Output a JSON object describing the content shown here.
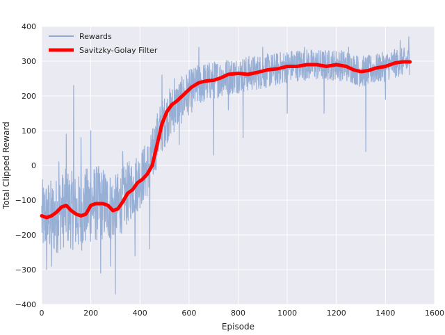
{
  "chart_data": {
    "type": "line",
    "title": "",
    "xlabel": "Episode",
    "ylabel": "Total Clipped Reward",
    "xlim": [
      0,
      1600
    ],
    "ylim": [
      -400,
      400
    ],
    "xticks": [
      0,
      200,
      400,
      600,
      800,
      1000,
      1200,
      1400,
      1600
    ],
    "yticks": [
      -400,
      -300,
      -200,
      -100,
      0,
      100,
      200,
      300,
      400
    ],
    "grid": true,
    "legend_position": "top-left",
    "background": "#eaeaf2",
    "series": [
      {
        "name": "Rewards",
        "color": "#8fa8d2",
        "mean": [
          [
            0,
            -150
          ],
          [
            50,
            -150
          ],
          [
            100,
            -120
          ],
          [
            150,
            -140
          ],
          [
            200,
            -110
          ],
          [
            250,
            -110
          ],
          [
            300,
            -125
          ],
          [
            350,
            -80
          ],
          [
            400,
            -40
          ],
          [
            440,
            0
          ],
          [
            480,
            100
          ],
          [
            520,
            150
          ],
          [
            560,
            180
          ],
          [
            600,
            210
          ],
          [
            650,
            235
          ],
          [
            700,
            245
          ],
          [
            750,
            255
          ],
          [
            800,
            260
          ],
          [
            850,
            265
          ],
          [
            900,
            270
          ],
          [
            950,
            275
          ],
          [
            1000,
            285
          ],
          [
            1050,
            290
          ],
          [
            1100,
            290
          ],
          [
            1150,
            288
          ],
          [
            1200,
            290
          ],
          [
            1250,
            285
          ],
          [
            1300,
            270
          ],
          [
            1350,
            275
          ],
          [
            1400,
            285
          ],
          [
            1450,
            295
          ],
          [
            1500,
            300
          ]
        ],
        "spread": [
          [
            0,
            110
          ],
          [
            200,
            115
          ],
          [
            350,
            90
          ],
          [
            450,
            80
          ],
          [
            550,
            70
          ],
          [
            700,
            55
          ],
          [
            900,
            50
          ],
          [
            1100,
            45
          ],
          [
            1300,
            45
          ],
          [
            1500,
            40
          ]
        ],
        "spikes": [
          [
            20,
            -300
          ],
          [
            40,
            -290
          ],
          [
            70,
            10
          ],
          [
            100,
            90
          ],
          [
            130,
            230
          ],
          [
            160,
            80
          ],
          [
            200,
            100
          ],
          [
            240,
            -310
          ],
          [
            280,
            -290
          ],
          [
            300,
            -370
          ],
          [
            330,
            40
          ],
          [
            380,
            -260
          ],
          [
            440,
            -240
          ],
          [
            490,
            260
          ],
          [
            540,
            250
          ],
          [
            560,
            60
          ],
          [
            640,
            340
          ],
          [
            700,
            30
          ],
          [
            760,
            160
          ],
          [
            820,
            80
          ],
          [
            900,
            340
          ],
          [
            1000,
            150
          ],
          [
            1070,
            340
          ],
          [
            1150,
            150
          ],
          [
            1250,
            340
          ],
          [
            1320,
            40
          ],
          [
            1400,
            190
          ],
          [
            1460,
            360
          ],
          [
            1495,
            370
          ]
        ],
        "points": 1500
      },
      {
        "name": "Savitzky-Golay Filter",
        "color": "#ff0000",
        "x": [
          0,
          20,
          40,
          60,
          80,
          100,
          120,
          140,
          160,
          180,
          200,
          220,
          250,
          270,
          290,
          310,
          330,
          350,
          370,
          390,
          410,
          430,
          450,
          470,
          490,
          510,
          530,
          550,
          580,
          610,
          640,
          670,
          700,
          730,
          760,
          800,
          840,
          880,
          920,
          960,
          1000,
          1040,
          1080,
          1120,
          1160,
          1200,
          1240,
          1270,
          1300,
          1330,
          1360,
          1400,
          1440,
          1470,
          1500
        ],
        "y": [
          -145,
          -150,
          -145,
          -135,
          -120,
          -115,
          -130,
          -140,
          -145,
          -140,
          -115,
          -110,
          -110,
          -115,
          -130,
          -125,
          -105,
          -80,
          -70,
          -50,
          -40,
          -25,
          0,
          60,
          120,
          155,
          175,
          185,
          205,
          225,
          238,
          243,
          245,
          252,
          262,
          265,
          262,
          268,
          275,
          278,
          285,
          285,
          290,
          290,
          285,
          290,
          285,
          275,
          270,
          273,
          280,
          285,
          295,
          298,
          298
        ]
      }
    ]
  }
}
